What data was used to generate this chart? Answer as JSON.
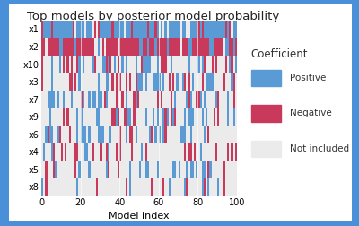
{
  "title": "Top models by posterior model probability",
  "xlabel": "Model index",
  "variables": [
    "x1",
    "x2",
    "x10",
    "x3",
    "x7",
    "x9",
    "x6",
    "x4",
    "x5",
    "x8"
  ],
  "n_models": 100,
  "colors": {
    "positive": "#5B9BD5",
    "negative": "#C9395C",
    "not_included": "#EBEBEB"
  },
  "outer_background": "#4A90D9",
  "panel_background": "#FFFFFF",
  "legend_title": "Coefficient",
  "legend_labels": [
    "Positive",
    "Negative",
    "Not included"
  ],
  "title_fontsize": 9.5,
  "axis_fontsize": 7,
  "legend_fontsize": 7.5,
  "inclusion_probs": [
    0.85,
    0.9,
    0.45,
    0.4,
    0.35,
    0.3,
    0.3,
    0.25,
    0.25,
    0.18
  ],
  "sign_probs": [
    0.88,
    0.12,
    0.65,
    0.38,
    0.72,
    0.65,
    0.72,
    0.3,
    0.65,
    0.3
  ],
  "seed": 42
}
